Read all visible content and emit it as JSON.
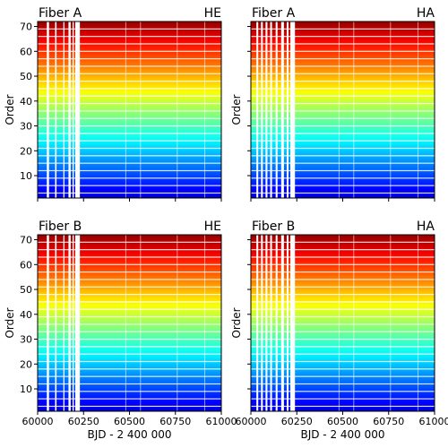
{
  "chart_data": [
    {
      "type": "heatmap",
      "title_left": "Fiber A",
      "title_right": "HE",
      "ylabel": "Order",
      "xlabel": "",
      "xlim": [
        60000,
        61000
      ],
      "ylim": [
        1,
        72
      ],
      "xticks": [
        60000,
        60250,
        60500,
        60750,
        61000
      ],
      "yticks": [
        10,
        20,
        30,
        40,
        50,
        60,
        70
      ],
      "show_xticklabels": false,
      "show_yticklabels": true,
      "colormap": "jet",
      "x_gaps": [
        [
          60050,
          60062
        ],
        [
          60095,
          60103
        ],
        [
          60140,
          60146
        ],
        [
          60168,
          60180
        ],
        [
          60190,
          60197
        ],
        [
          60205,
          60230
        ]
      ],
      "faint_x": [
        60480,
        60560,
        60760,
        60910
      ],
      "y_gaps": [
        3,
        6,
        9,
        12,
        15,
        18,
        21,
        24,
        27,
        30,
        33,
        36,
        39,
        42,
        45,
        48,
        51,
        54,
        57,
        60,
        63,
        66,
        69
      ]
    },
    {
      "type": "heatmap",
      "title_left": "Fiber A",
      "title_right": "HA",
      "ylabel": "Order",
      "xlabel": "",
      "xlim": [
        60000,
        61000
      ],
      "ylim": [
        1,
        72
      ],
      "xticks": [
        60000,
        60250,
        60500,
        60750,
        61000
      ],
      "yticks": [
        10,
        20,
        30,
        40,
        50,
        60,
        70
      ],
      "show_xticklabels": false,
      "show_yticklabels": false,
      "colormap": "jet",
      "x_gaps": [
        [
          60030,
          60040
        ],
        [
          60055,
          60065
        ],
        [
          60080,
          60090
        ],
        [
          60105,
          60115
        ],
        [
          60135,
          60145
        ],
        [
          60165,
          60180
        ],
        [
          60195,
          60205
        ],
        [
          60215,
          60240
        ]
      ],
      "faint_x": [
        60480,
        60560,
        60760,
        60910
      ],
      "y_gaps": [
        3,
        6,
        9,
        12,
        15,
        18,
        21,
        24,
        27,
        30,
        33,
        36,
        39,
        42,
        45,
        48,
        51,
        54,
        57,
        60,
        63,
        66,
        69
      ]
    },
    {
      "type": "heatmap",
      "title_left": "Fiber B",
      "title_right": "HE",
      "ylabel": "Order",
      "xlabel": "BJD - 2 400 000",
      "xlim": [
        60000,
        61000
      ],
      "ylim": [
        1,
        72
      ],
      "xticks": [
        60000,
        60250,
        60500,
        60750,
        61000
      ],
      "yticks": [
        10,
        20,
        30,
        40,
        50,
        60,
        70
      ],
      "show_xticklabels": true,
      "show_yticklabels": true,
      "colormap": "jet",
      "x_gaps": [
        [
          60050,
          60062
        ],
        [
          60095,
          60103
        ],
        [
          60140,
          60146
        ],
        [
          60168,
          60180
        ],
        [
          60190,
          60197
        ],
        [
          60205,
          60230
        ]
      ],
      "faint_x": [
        60480,
        60560,
        60760,
        60910
      ],
      "y_gaps": [
        3,
        6,
        9,
        12,
        15,
        18,
        21,
        24,
        27,
        30,
        33,
        36,
        39,
        42,
        45,
        48,
        51,
        54,
        57,
        60,
        63,
        66,
        69
      ]
    },
    {
      "type": "heatmap",
      "title_left": "Fiber B",
      "title_right": "HA",
      "ylabel": "Order",
      "xlabel": "BJD - 2 400 000",
      "xlim": [
        60000,
        61000
      ],
      "ylim": [
        1,
        72
      ],
      "xticks": [
        60000,
        60250,
        60500,
        60750,
        61000
      ],
      "yticks": [
        10,
        20,
        30,
        40,
        50,
        60,
        70
      ],
      "show_xticklabels": true,
      "show_yticklabels": false,
      "colormap": "jet",
      "x_gaps": [
        [
          60030,
          60040
        ],
        [
          60055,
          60065
        ],
        [
          60080,
          60090
        ],
        [
          60105,
          60115
        ],
        [
          60135,
          60145
        ],
        [
          60165,
          60180
        ],
        [
          60195,
          60205
        ],
        [
          60215,
          60240
        ]
      ],
      "faint_x": [
        60480,
        60560,
        60760,
        60910
      ],
      "y_gaps": [
        3,
        6,
        9,
        12,
        15,
        18,
        21,
        24,
        27,
        30,
        33,
        36,
        39,
        42,
        45,
        48,
        51,
        54,
        57,
        60,
        63,
        66,
        69
      ]
    }
  ]
}
